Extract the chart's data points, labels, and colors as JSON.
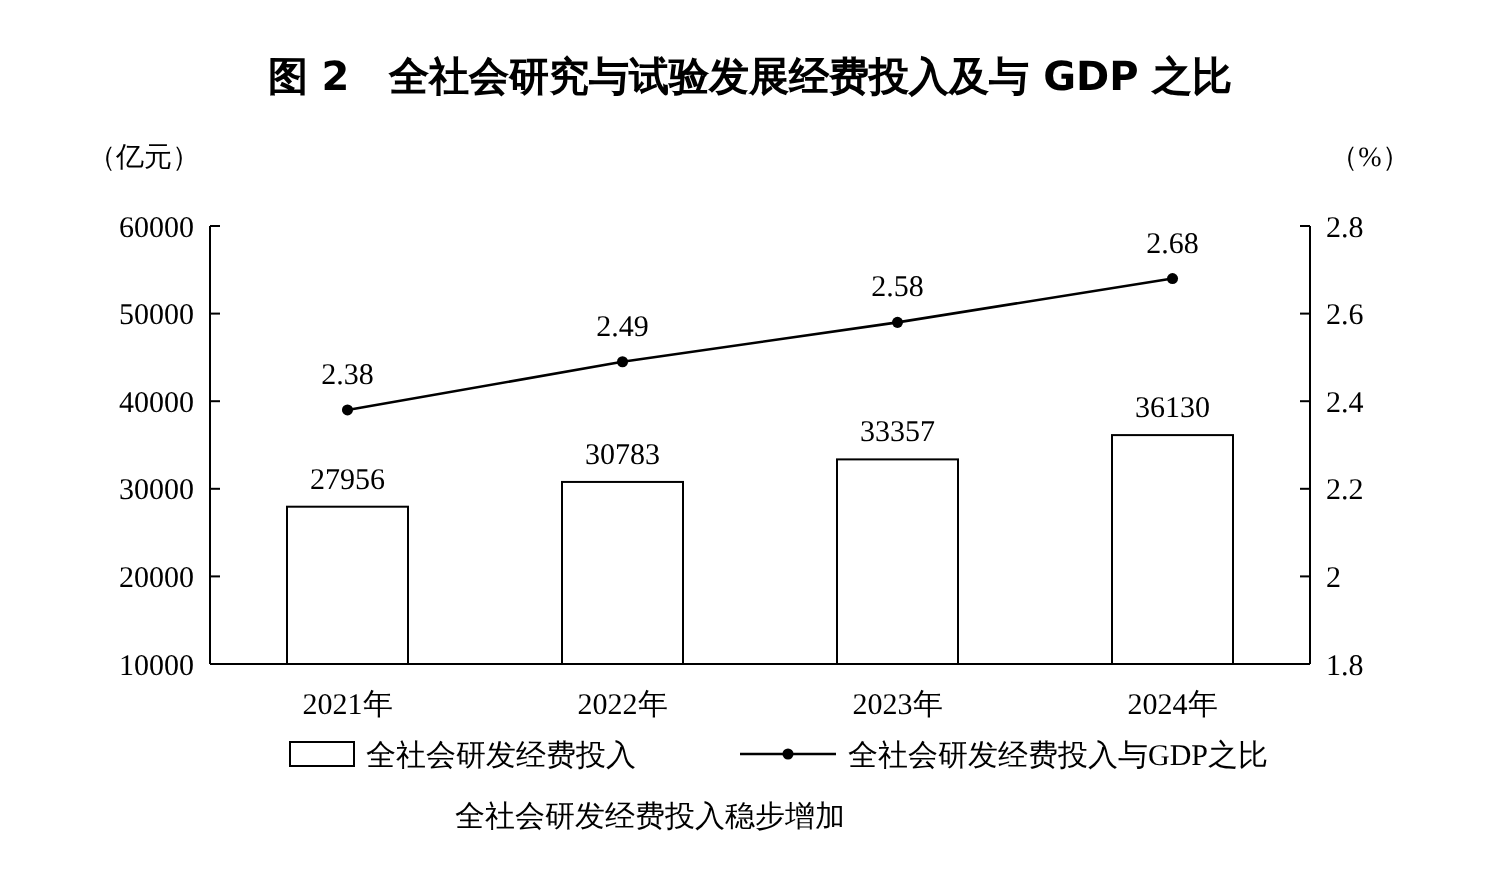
{
  "chart_data": {
    "type": "bar",
    "title": "图 2　全社会研究与试验发展经费投入及与 GDP 之比",
    "ylabel": "（亿元）",
    "y2label": "（%）",
    "categories": [
      "2021年",
      "2022年",
      "2023年",
      "2024年"
    ],
    "series": [
      {
        "name": "全社会研发经费投入",
        "color": "#ffffff",
        "values": [
          27956,
          30783,
          33357,
          36130
        ]
      },
      {
        "name": "全社会研发经费投入与GDP之比",
        "type": "line",
        "axis": "y2",
        "color": "#000000",
        "values": [
          2.38,
          2.49,
          2.58,
          2.68
        ]
      }
    ],
    "ylim": [
      10000,
      60000
    ],
    "yticks": [
      10000,
      20000,
      30000,
      40000,
      50000,
      60000
    ],
    "y2lim": [
      1.8,
      2.8
    ],
    "y2ticks": [
      1.8,
      {
        "value": 2,
        "label": "2"
      },
      2.2,
      2.4,
      2.6,
      2.8
    ],
    "data_labels": true,
    "legend": "bottom",
    "marker": "circle",
    "line_style": "solid",
    "grid": false,
    "annotations": [
      "全社会研发经费投入稳步增加"
    ]
  }
}
